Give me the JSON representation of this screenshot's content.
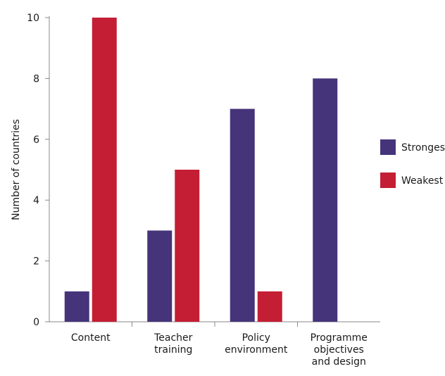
{
  "chart_data": {
    "type": "bar",
    "title": "",
    "xlabel": "",
    "ylabel": "Number of countries",
    "ylim": [
      0,
      10
    ],
    "yticks": [
      0,
      2,
      4,
      6,
      8,
      10
    ],
    "grid": false,
    "legend_position": "right",
    "categories": [
      [
        "Content"
      ],
      [
        "Teacher",
        "training"
      ],
      [
        "Policy",
        "environment"
      ],
      [
        "Programme",
        "objectives",
        "and design"
      ]
    ],
    "series": [
      {
        "name": "Strongest",
        "color": "#46347a",
        "values": [
          1,
          3,
          7,
          8
        ]
      },
      {
        "name": "Weakest",
        "color": "#c41e34",
        "values": [
          10,
          5,
          1,
          0
        ]
      }
    ]
  }
}
